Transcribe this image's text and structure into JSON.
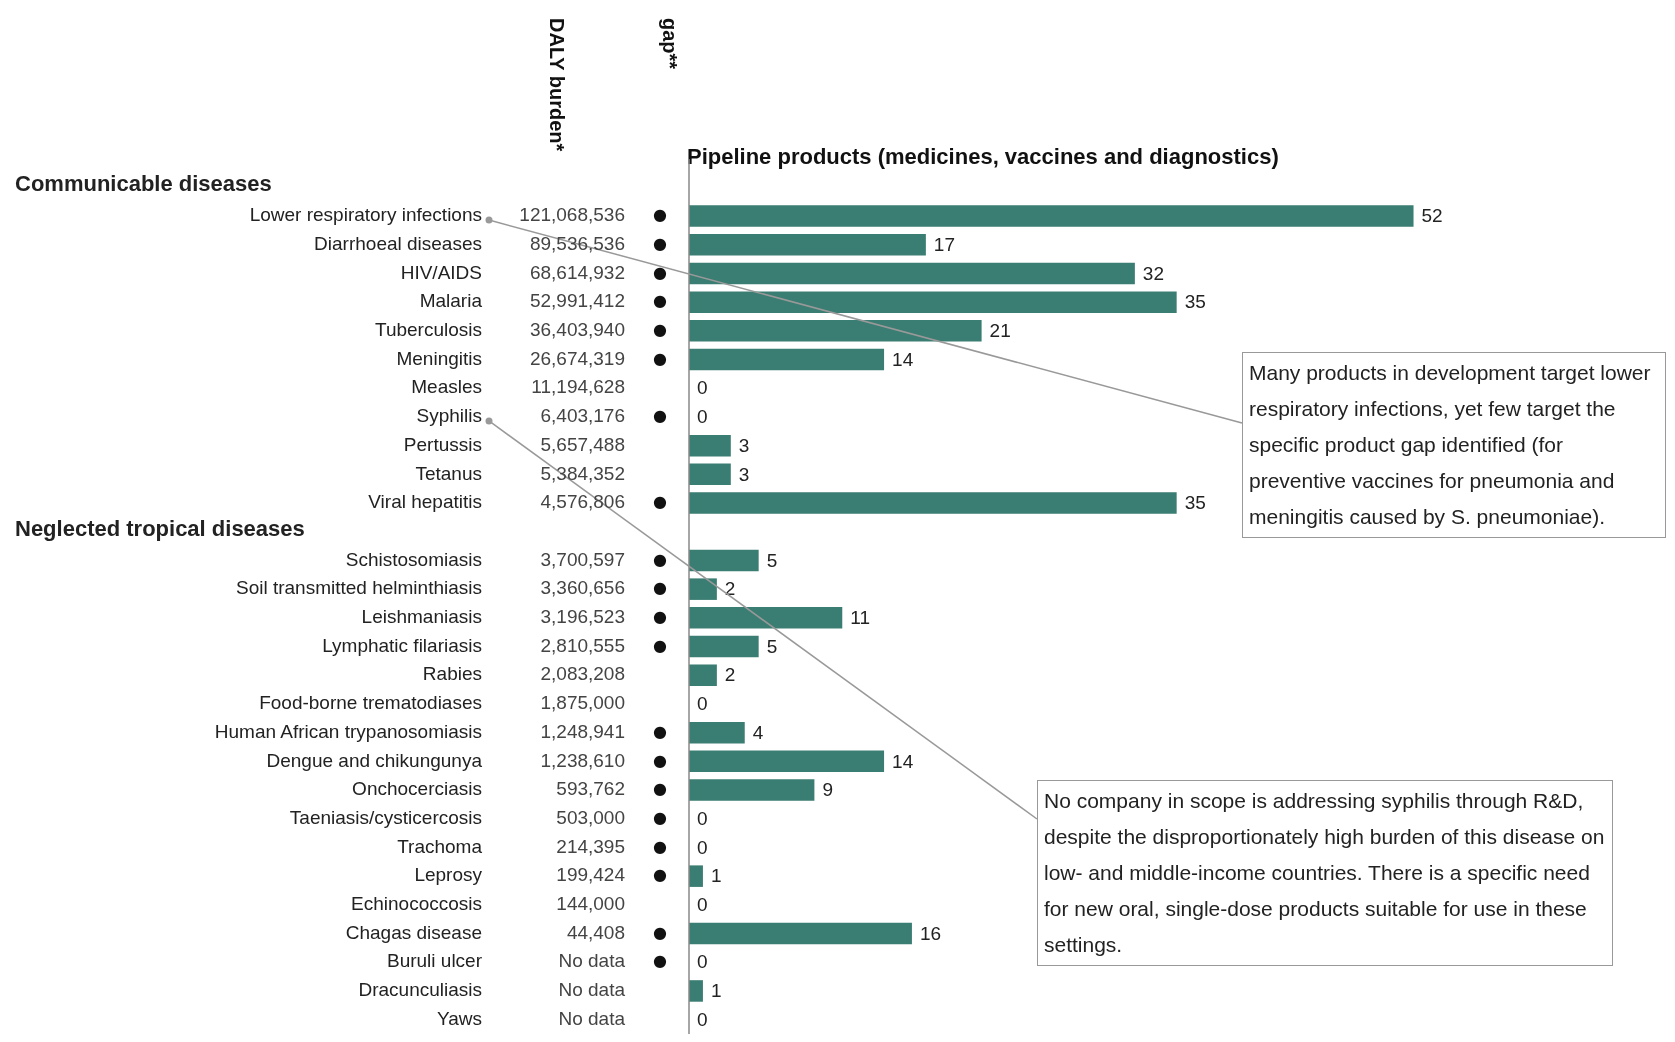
{
  "chart_data": [
    {
      "type": "bar",
      "orientation": "horizontal",
      "title": "Pipeline products (medicines, vaccines and diagnostics)",
      "data_labels": true,
      "color": "#3a7d72",
      "categories": [
        null,
        "Lower respiratory infections",
        "Diarrhoeal diseases",
        "HIV/AIDS",
        "Malaria",
        "Tuberculosis",
        "Meningitis",
        "Measles",
        "Syphilis",
        "Pertussis",
        "Tetanus",
        "Viral hepatitis",
        null,
        "Schistosomiasis",
        "Soil transmitted helminthiasis",
        "Leishmaniasis",
        "Lymphatic filariasis",
        "Rabies",
        "Food-borne trematodiases",
        "Human African trypanosomiasis",
        "Dengue and chikungunya",
        "Onchocerciasis",
        "Taeniasis/cysticercosis",
        "Trachoma",
        "Leprosy",
        "Echinococcosis",
        "Chagas disease",
        "Buruli ulcer",
        "Dracunculiasis",
        "Yaws"
      ],
      "values": [
        null,
        52,
        17,
        32,
        35,
        21,
        14,
        0,
        0,
        3,
        3,
        35,
        null,
        5,
        2,
        11,
        5,
        2,
        0,
        4,
        14,
        9,
        0,
        0,
        1,
        0,
        16,
        0,
        1,
        0
      ],
      "annotations": [
        "Communicable diseases",
        "Neglected tropical diseases",
        "Many products in development target lower respiratory infections, yet few target the specific product gap identified (for preventive vaccines for pneumonia and meningitis caused by S. pneumoniae).",
        "No company in scope is addressing syphilis through R&D, despite the disproportionately high burden of this disease on low- and middle-income countries. There is a specific need for new oral, single-dose products suitable for use in these settings."
      ]
    },
    {
      "type": "other",
      "title": "DALY burden*",
      "value_labels": [
        null,
        "121,068,536",
        "89,536,536",
        "68,614,932",
        "52,991,412",
        "36,403,940",
        "26,674,319",
        "11,194,628",
        "6,403,176",
        "5,657,488",
        "5,384,352",
        "4,576,806",
        null,
        "3,700,597",
        "3,360,656",
        "3,196,523",
        "2,810,555",
        "2,083,208",
        "1,875,000",
        "1,248,941",
        "1,238,610",
        "593,762",
        "503,000",
        "214,395",
        "199,424",
        "144,000",
        "44,408",
        "No data",
        "No data",
        "No data"
      ]
    },
    {
      "type": "other",
      "title": "gap**",
      "value_labels": [
        null,
        "●",
        "●",
        "●",
        "●",
        "●",
        "●",
        null,
        "●",
        null,
        null,
        "●",
        null,
        "●",
        "●",
        "●",
        "●",
        null,
        null,
        "●",
        "●",
        "●",
        "●",
        "●",
        "●",
        null,
        "●",
        "●",
        null,
        null
      ]
    }
  ]
}
